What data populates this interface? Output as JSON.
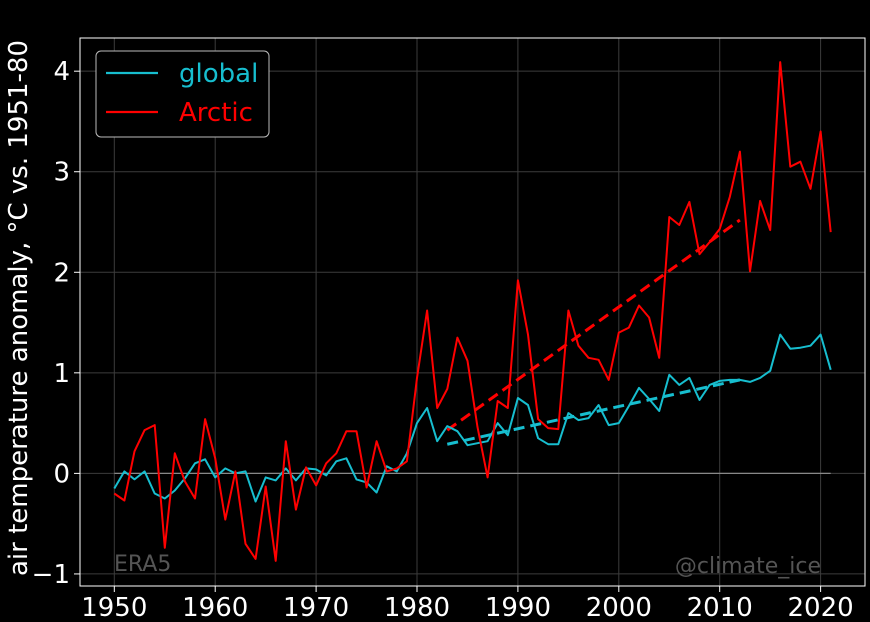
{
  "chart_data": {
    "type": "line",
    "ylabel": "air temperature anomaly, °C vs. 1951-80",
    "xlim": [
      1946.6,
      2024.4
    ],
    "ylim": [
      -1.12,
      4.33
    ],
    "xticks": [
      1950,
      1960,
      1970,
      1980,
      1990,
      2000,
      2010,
      2020
    ],
    "yticks": [
      -1,
      0,
      1,
      2,
      3,
      4
    ],
    "grid": true,
    "legend_position": "top-left",
    "x": [
      1950,
      1951,
      1952,
      1953,
      1954,
      1955,
      1956,
      1957,
      1958,
      1959,
      1960,
      1961,
      1962,
      1963,
      1964,
      1965,
      1966,
      1967,
      1968,
      1969,
      1970,
      1971,
      1972,
      1973,
      1974,
      1975,
      1976,
      1977,
      1978,
      1979,
      1980,
      1981,
      1982,
      1983,
      1984,
      1985,
      1986,
      1987,
      1988,
      1989,
      1990,
      1991,
      1992,
      1993,
      1994,
      1995,
      1996,
      1997,
      1998,
      1999,
      2000,
      2001,
      2002,
      2003,
      2004,
      2005,
      2006,
      2007,
      2008,
      2009,
      2010,
      2011,
      2012,
      2013,
      2014,
      2015,
      2016,
      2017,
      2018,
      2019,
      2020,
      2021
    ],
    "series": [
      {
        "name": "global",
        "color": "#17becf",
        "values": [
          -0.15,
          0.02,
          -0.06,
          0.02,
          -0.2,
          -0.25,
          -0.17,
          -0.05,
          0.1,
          0.14,
          -0.04,
          0.05,
          0.0,
          0.02,
          -0.28,
          -0.04,
          -0.07,
          0.05,
          -0.07,
          0.05,
          0.04,
          -0.02,
          0.12,
          0.15,
          -0.06,
          -0.09,
          -0.19,
          0.07,
          0.02,
          0.2,
          0.5,
          0.65,
          0.32,
          0.47,
          0.42,
          0.28,
          0.3,
          0.32,
          0.5,
          0.38,
          0.75,
          0.68,
          0.35,
          0.29,
          0.29,
          0.6,
          0.53,
          0.55,
          0.68,
          0.48,
          0.5,
          0.67,
          0.85,
          0.74,
          0.62,
          0.98,
          0.88,
          0.95,
          0.73,
          0.88,
          0.92,
          0.93,
          0.93,
          0.91,
          0.95,
          1.02,
          1.38,
          1.24,
          1.25,
          1.27,
          1.38,
          1.03
        ]
      },
      {
        "name": "Arctic",
        "color": "#ff0000",
        "values": [
          -0.2,
          -0.27,
          0.22,
          0.43,
          0.48,
          -0.74,
          0.2,
          -0.08,
          -0.25,
          0.54,
          0.15,
          -0.46,
          0.02,
          -0.7,
          -0.85,
          -0.13,
          -0.87,
          0.32,
          -0.36,
          0.06,
          -0.12,
          0.1,
          0.2,
          0.42,
          0.42,
          -0.14,
          0.32,
          0.02,
          0.05,
          0.12,
          0.95,
          1.62,
          0.65,
          0.84,
          1.35,
          1.12,
          0.46,
          -0.04,
          0.72,
          0.65,
          1.92,
          1.38,
          0.54,
          0.45,
          0.44,
          1.62,
          1.27,
          1.15,
          1.13,
          0.93,
          1.4,
          1.45,
          1.67,
          1.55,
          1.15,
          2.55,
          2.47,
          2.7,
          2.18,
          2.3,
          2.43,
          2.75,
          3.2,
          2.01,
          2.71,
          2.42,
          4.09,
          3.05,
          3.1,
          2.83,
          3.4,
          2.4
        ]
      }
    ],
    "trends": [
      {
        "series": "global",
        "x": [
          1983,
          2012
        ],
        "y": [
          0.29,
          0.93
        ]
      },
      {
        "series": "Arctic",
        "x": [
          1983,
          2012
        ],
        "y": [
          0.43,
          2.52
        ]
      }
    ],
    "zero_line": {
      "x": [
        1950,
        2021
      ],
      "y": 0
    }
  },
  "annotations": {
    "source": "ERA5",
    "credit": "@climate_ice"
  }
}
